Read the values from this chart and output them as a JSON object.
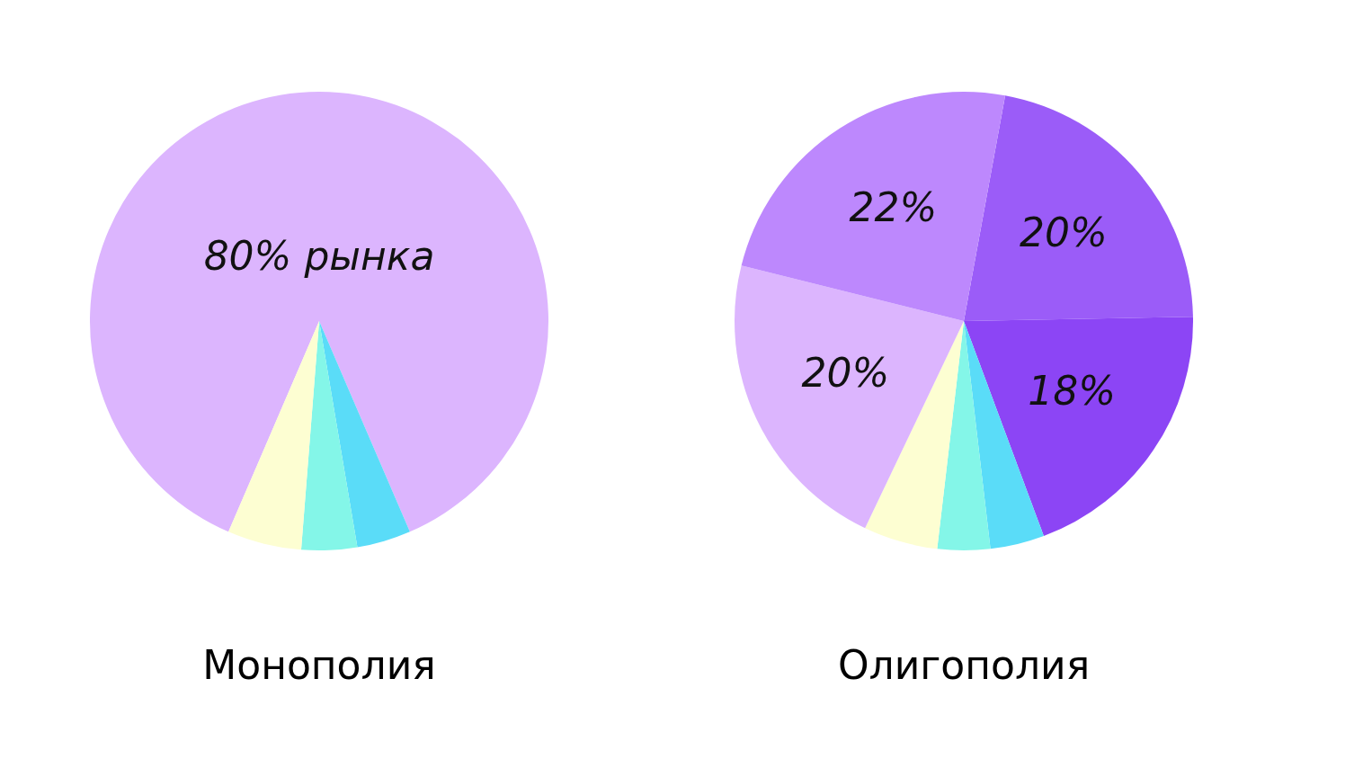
{
  "chart_data": [
    {
      "type": "pie",
      "title": "Монополия",
      "categories": [
        null,
        null,
        null,
        null
      ],
      "values": [
        80,
        3.5,
        3.6,
        4.8
      ],
      "colors": [
        "#dcb5fe",
        "#5adcf8",
        "#84f6e8",
        "#fdfed2"
      ],
      "value_labels": [
        "80% рынка",
        null,
        null,
        null
      ]
    },
    {
      "type": "pie",
      "title": "Олигополия",
      "categories": [
        null,
        null,
        null,
        null,
        null,
        null,
        null
      ],
      "values": [
        20,
        18,
        3.5,
        3.4,
        4.8,
        20,
        22
      ],
      "colors": [
        "#9b5cf8",
        "#8c45f5",
        "#5adcf8",
        "#84f6e8",
        "#fdfed2",
        "#dcb5fe",
        "#bd88fd"
      ],
      "value_labels": [
        "20%",
        "18%",
        null,
        null,
        null,
        "20%",
        "22%"
      ]
    }
  ]
}
